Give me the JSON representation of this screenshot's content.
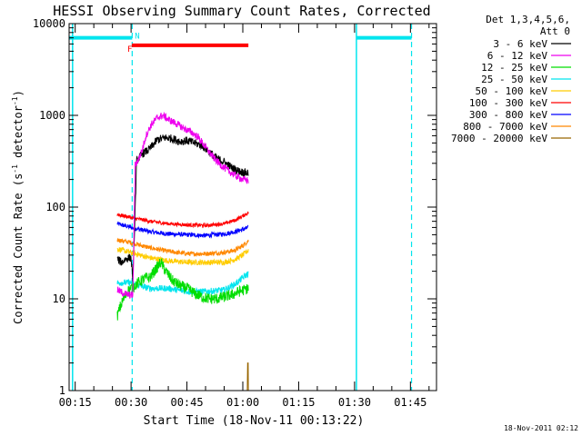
{
  "chart_data": {
    "type": "line",
    "title": "HESSI Observing Summary Count Rates, Corrected",
    "xlabel": "Start Time (18-Nov-11 00:13:22)",
    "ylabel": "Corrected Count Rate (s",
    "ylabel_sup": "-1",
    "ylabel_mid": " detector",
    "ylabel_end": ")",
    "y_scale": "log",
    "ylim": [
      1,
      10000
    ],
    "xlim_minutes": [
      13.37,
      112
    ],
    "y_ticks": [
      {
        "value": 1,
        "label": "1"
      },
      {
        "value": 10,
        "label": "10"
      },
      {
        "value": 100,
        "label": "100"
      },
      {
        "value": 1000,
        "label": "1000"
      },
      {
        "value": 10000,
        "label": "10000"
      }
    ],
    "x_ticks": [
      {
        "minute": 15,
        "label": "00:15"
      },
      {
        "minute": 30,
        "label": "00:30"
      },
      {
        "minute": 45,
        "label": "00:45"
      },
      {
        "minute": 60,
        "label": "01:00"
      },
      {
        "minute": 75,
        "label": "01:15"
      },
      {
        "minute": 90,
        "label": "01:30"
      },
      {
        "minute": 105,
        "label": "01:45"
      }
    ],
    "legend_header": [
      "Det 1,3,4,5,6,",
      "Att 0"
    ],
    "legend_position": "right",
    "footer_date": "18-Nov-2011 02:12",
    "night": {
      "color": "#00e5ee",
      "level": 7000,
      "segments": [
        [
          13.37,
          30.3
        ],
        [
          90.5,
          105.3
        ]
      ],
      "solid_lines": [
        14.3,
        90.5
      ],
      "dashed_lines": [
        30.3,
        105.3
      ],
      "label": "N",
      "label_minute": 31.0
    },
    "flare": {
      "color": "#ff0000",
      "level": 5800,
      "segment": [
        30.2,
        61.5
      ],
      "label": "F",
      "label_minute": 29.0
    },
    "series": [
      {
        "name": "3 - 6 keV",
        "color": "#000000",
        "noise": 0.045,
        "points": [
          [
            26.3,
            27
          ],
          [
            27.5,
            25
          ],
          [
            28.5,
            27
          ],
          [
            29.4,
            28
          ],
          [
            30.0,
            28
          ],
          [
            30.5,
            16
          ],
          [
            31.5,
            320
          ],
          [
            33,
            380
          ],
          [
            35,
            430
          ],
          [
            37,
            540
          ],
          [
            39,
            570
          ],
          [
            41,
            560
          ],
          [
            43,
            520
          ],
          [
            45,
            530
          ],
          [
            47,
            500
          ],
          [
            49,
            470
          ],
          [
            51,
            400
          ],
          [
            53,
            340
          ],
          [
            55,
            310
          ],
          [
            57,
            270
          ],
          [
            59,
            245
          ],
          [
            61.5,
            235
          ]
        ]
      },
      {
        "name": "6 - 12 keV",
        "color": "#ee00ee",
        "noise": 0.04,
        "points": [
          [
            26.3,
            12.5
          ],
          [
            28,
            11.5
          ],
          [
            29.5,
            11
          ],
          [
            30.5,
            11
          ],
          [
            31.1,
            290
          ],
          [
            32,
            330
          ],
          [
            33,
            420
          ],
          [
            34,
            600
          ],
          [
            35.5,
            800
          ],
          [
            37,
            940
          ],
          [
            38.5,
            1000
          ],
          [
            40,
            900
          ],
          [
            42,
            820
          ],
          [
            44,
            730
          ],
          [
            46,
            660
          ],
          [
            48,
            580
          ],
          [
            50,
            450
          ],
          [
            52,
            350
          ],
          [
            54,
            290
          ],
          [
            56,
            250
          ],
          [
            58,
            220
          ],
          [
            60,
            200
          ],
          [
            61.5,
            195
          ]
        ]
      },
      {
        "name": "12 - 25 keV",
        "color": "#00dd00",
        "noise": 0.06,
        "points": [
          [
            26.3,
            6.5
          ],
          [
            27,
            8
          ],
          [
            28,
            10
          ],
          [
            29,
            12
          ],
          [
            30,
            13
          ],
          [
            31,
            14
          ],
          [
            32,
            15
          ],
          [
            34,
            17
          ],
          [
            35,
            17
          ],
          [
            37,
            22
          ],
          [
            38,
            25
          ],
          [
            39,
            21
          ],
          [
            41,
            16
          ],
          [
            43,
            14
          ],
          [
            45,
            13
          ],
          [
            47,
            11.5
          ],
          [
            49,
            10.5
          ],
          [
            51,
            10
          ],
          [
            53,
            10
          ],
          [
            55,
            10.5
          ],
          [
            57,
            11
          ],
          [
            59,
            12
          ],
          [
            61.5,
            13
          ]
        ]
      },
      {
        "name": "25 - 50 keV",
        "color": "#00e5ee",
        "noise": 0.035,
        "points": [
          [
            26.3,
            15
          ],
          [
            30,
            15
          ],
          [
            32,
            14
          ],
          [
            35,
            13
          ],
          [
            40,
            13
          ],
          [
            45,
            12
          ],
          [
            50,
            12
          ],
          [
            55,
            12.5
          ],
          [
            58,
            14.5
          ],
          [
            60,
            17
          ],
          [
            61.5,
            19
          ]
        ]
      },
      {
        "name": "50 - 100 keV",
        "color": "#ffcc00",
        "noise": 0.03,
        "points": [
          [
            26.3,
            35
          ],
          [
            30,
            32
          ],
          [
            35,
            28
          ],
          [
            40,
            26
          ],
          [
            45,
            25
          ],
          [
            50,
            25
          ],
          [
            55,
            25
          ],
          [
            58,
            27
          ],
          [
            60,
            30
          ],
          [
            61.5,
            34
          ]
        ]
      },
      {
        "name": "100 - 300 keV",
        "color": "#ff0000",
        "noise": 0.02,
        "points": [
          [
            26.3,
            83
          ],
          [
            30,
            77
          ],
          [
            35,
            70
          ],
          [
            40,
            66
          ],
          [
            45,
            64
          ],
          [
            50,
            63
          ],
          [
            55,
            66
          ],
          [
            58,
            72
          ],
          [
            60,
            80
          ],
          [
            61.5,
            87
          ]
        ]
      },
      {
        "name": "300 - 800 keV",
        "color": "#0000ff",
        "noise": 0.025,
        "points": [
          [
            26.3,
            66
          ],
          [
            30,
            60
          ],
          [
            35,
            54
          ],
          [
            40,
            51
          ],
          [
            45,
            50
          ],
          [
            50,
            49
          ],
          [
            55,
            51
          ],
          [
            58,
            54
          ],
          [
            60,
            57
          ],
          [
            61.5,
            60
          ]
        ]
      },
      {
        "name": "800 - 7000 keV",
        "color": "#ff8800",
        "noise": 0.025,
        "points": [
          [
            26.3,
            44
          ],
          [
            30,
            41
          ],
          [
            35,
            36
          ],
          [
            40,
            33
          ],
          [
            45,
            31
          ],
          [
            50,
            31
          ],
          [
            55,
            32
          ],
          [
            58,
            34
          ],
          [
            60,
            38
          ],
          [
            61.5,
            43
          ]
        ]
      },
      {
        "name": "7000 - 20000 keV",
        "color": "#996600",
        "noise": 0,
        "points": [
          [
            26.3,
            1
          ],
          [
            61.2,
            1
          ],
          [
            61.3,
            2
          ],
          [
            61.45,
            2
          ],
          [
            61.5,
            1
          ]
        ]
      }
    ]
  }
}
